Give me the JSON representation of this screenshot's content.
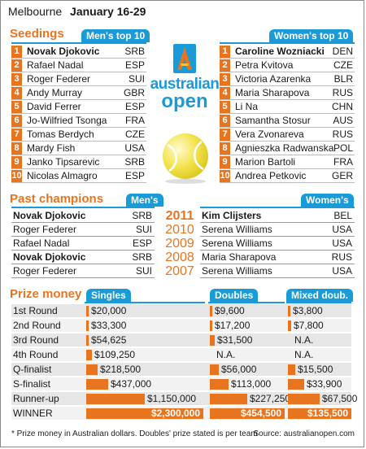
{
  "header": {
    "city": "Melbourne",
    "dates": "January 16-29"
  },
  "seedings": {
    "title": "Seedings",
    "men_label": "Men's top 10",
    "women_label": "Women's top 10",
    "men": [
      {
        "rank": "1",
        "name": "Novak Djokovic",
        "country": "SRB"
      },
      {
        "rank": "2",
        "name": "Rafael Nadal",
        "country": "ESP"
      },
      {
        "rank": "3",
        "name": "Roger Federer",
        "country": "SUI"
      },
      {
        "rank": "4",
        "name": "Andy Murray",
        "country": "GBR"
      },
      {
        "rank": "5",
        "name": "David Ferrer",
        "country": "ESP"
      },
      {
        "rank": "6",
        "name": "Jo-Wilfried Tsonga",
        "country": "FRA"
      },
      {
        "rank": "7",
        "name": "Tomas Berdych",
        "country": "CZE"
      },
      {
        "rank": "8",
        "name": "Mardy Fish",
        "country": "USA"
      },
      {
        "rank": "9",
        "name": "Janko Tipsarevic",
        "country": "SRB"
      },
      {
        "rank": "10",
        "name": "Nicolas Almagro",
        "country": "ESP"
      }
    ],
    "women": [
      {
        "rank": "1",
        "name": "Caroline Wozniacki",
        "country": "DEN"
      },
      {
        "rank": "2",
        "name": "Petra Kvitova",
        "country": "CZE"
      },
      {
        "rank": "3",
        "name": "Victoria Azarenka",
        "country": "BLR"
      },
      {
        "rank": "4",
        "name": "Maria Sharapova",
        "country": "RUS"
      },
      {
        "rank": "5",
        "name": "Li Na",
        "country": "CHN"
      },
      {
        "rank": "6",
        "name": "Samantha Stosur",
        "country": "AUS"
      },
      {
        "rank": "7",
        "name": "Vera Zvonareva",
        "country": "RUS"
      },
      {
        "rank": "8",
        "name": "Agnieszka Radwanska",
        "country": "POL"
      },
      {
        "rank": "9",
        "name": "Marion Bartoli",
        "country": "FRA"
      },
      {
        "rank": "10",
        "name": "Andrea Petkovic",
        "country": "GER"
      }
    ]
  },
  "logo": {
    "line1": "australian",
    "line2": "open"
  },
  "champions": {
    "title": "Past champions",
    "men_label": "Men's",
    "women_label": "Women's",
    "years": [
      "2011",
      "2010",
      "2009",
      "2008",
      "2007"
    ],
    "men": [
      {
        "name": "Novak Djokovic",
        "country": "SRB"
      },
      {
        "name": "Roger Federer",
        "country": "SUI"
      },
      {
        "name": "Rafael Nadal",
        "country": "ESP"
      },
      {
        "name": "Novak Djokovic",
        "country": "SRB"
      },
      {
        "name": "Roger Federer",
        "country": "SUI"
      }
    ],
    "women": [
      {
        "name": "Kim Clijsters",
        "country": "BEL"
      },
      {
        "name": "Serena Williams",
        "country": "USA"
      },
      {
        "name": "Serena Williams",
        "country": "USA"
      },
      {
        "name": "Maria Sharapova",
        "country": "RUS"
      },
      {
        "name": "Serena Williams",
        "country": "USA"
      }
    ]
  },
  "prize": {
    "title": "Prize money",
    "singles_label": "Singles",
    "doubles_label": "Doubles",
    "mixed_label": "Mixed doub.",
    "rounds": [
      "1st Round",
      "2nd Round",
      "3rd Round",
      "4th Round",
      "Q-finalist",
      "S-finalist",
      "Runner-up",
      "WINNER"
    ],
    "singles": [
      "$20,000",
      "$33,300",
      "$54,625",
      "$109,250",
      "$218,500",
      "$437,000",
      "$1,150,000",
      "$2,300,000"
    ],
    "doubles": [
      "$9,600",
      "$17,200",
      "$31,500",
      "N.A.",
      "$56,000",
      "$113,000",
      "$227,250",
      "$454,500"
    ],
    "mixed": [
      "$3,800",
      "$7,800",
      "N.A.",
      "N.A.",
      "$15,500",
      "$33,900",
      "$67,500",
      "$135,500"
    ]
  },
  "footer": {
    "note": "* Prize money in Australian dollars. Doubles' prize stated is per team",
    "source": "Source:  australianopen.com"
  },
  "chart_data": [
    {
      "type": "bar",
      "categories": [
        "1st Round",
        "2nd Round",
        "3rd Round",
        "4th Round",
        "Q-finalist",
        "S-finalist",
        "Runner-up",
        "WINNER"
      ],
      "series": [
        {
          "name": "Singles",
          "values": [
            20000,
            33300,
            54625,
            109250,
            218500,
            437000,
            1150000,
            2300000
          ]
        }
      ]
    },
    {
      "type": "bar",
      "categories": [
        "1st Round",
        "2nd Round",
        "3rd Round",
        "4th Round",
        "Q-finalist",
        "S-finalist",
        "Runner-up",
        "WINNER"
      ],
      "series": [
        {
          "name": "Doubles",
          "values": [
            9600,
            17200,
            31500,
            null,
            56000,
            113000,
            227250,
            454500
          ]
        }
      ]
    },
    {
      "type": "bar",
      "categories": [
        "1st Round",
        "2nd Round",
        "3rd Round",
        "4th Round",
        "Q-finalist",
        "S-finalist",
        "Runner-up",
        "WINNER"
      ],
      "series": [
        {
          "name": "Mixed doub.",
          "values": [
            3800,
            7800,
            null,
            null,
            15500,
            33900,
            67500,
            135500
          ]
        }
      ]
    }
  ],
  "colors": {
    "accent": "#e9741f",
    "blue": "#1a9bd7"
  }
}
